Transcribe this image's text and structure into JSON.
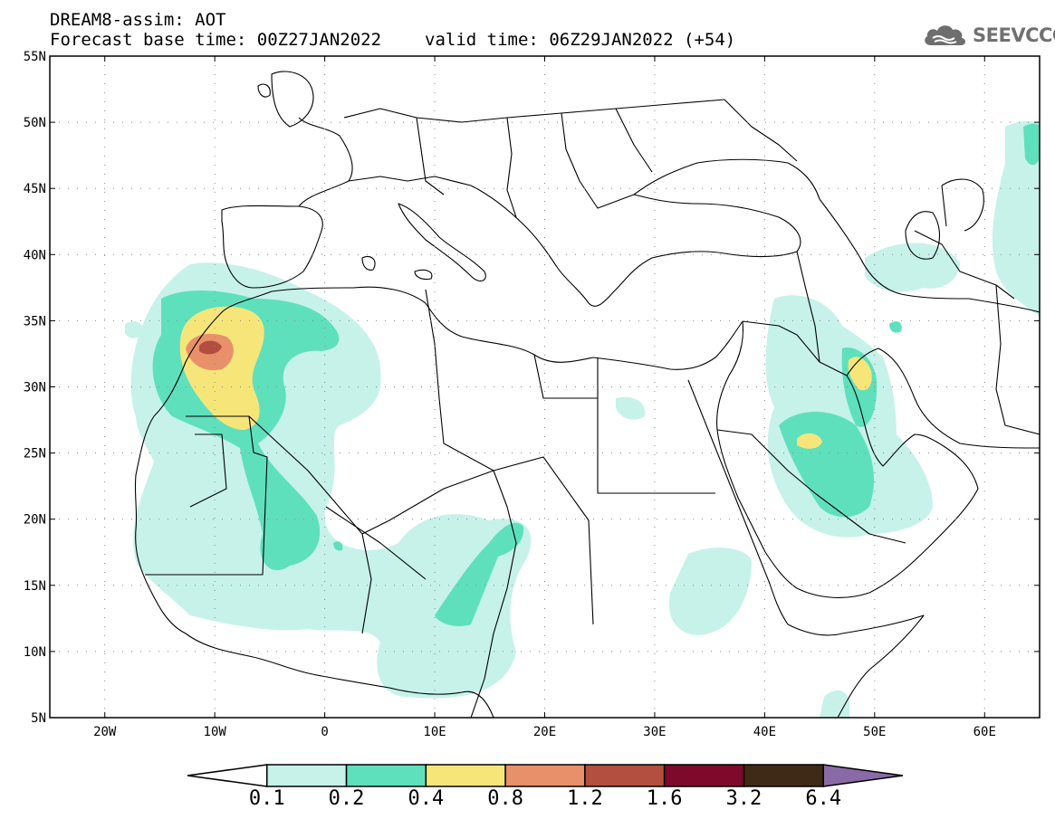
{
  "title": {
    "line1": "DREAM8-assim: AOT",
    "base_time": "Forecast base time: 00Z27JAN2022",
    "valid_time": "valid time: 06Z29JAN2022 (+54)"
  },
  "logo": {
    "text": "SEEVCCC",
    "icon": "cloud-icon",
    "color": "#707070"
  },
  "map": {
    "lon_range": [
      -25,
      65
    ],
    "lat_range": [
      5,
      55
    ],
    "lat_ticks": [
      "55N",
      "50N",
      "45N",
      "40N",
      "35N",
      "30N",
      "25N",
      "20N",
      "15N",
      "10N",
      "5N"
    ],
    "lon_ticks": [
      "20W",
      "10W",
      "0",
      "10E",
      "20E",
      "30E",
      "40E",
      "50E",
      "60E"
    ],
    "grid": "dotted"
  },
  "colorbar": {
    "labels": [
      "0.1",
      "0.2",
      "0.4",
      "0.8",
      "1.2",
      "1.6",
      "3.2",
      "6.4"
    ],
    "colors": [
      "#ffffff",
      "#c6f2ea",
      "#5fe0bd",
      "#f6e67a",
      "#e8906a",
      "#b24f3e",
      "#7d0a2a",
      "#3e2a16",
      "#8a6aa6"
    ]
  }
}
